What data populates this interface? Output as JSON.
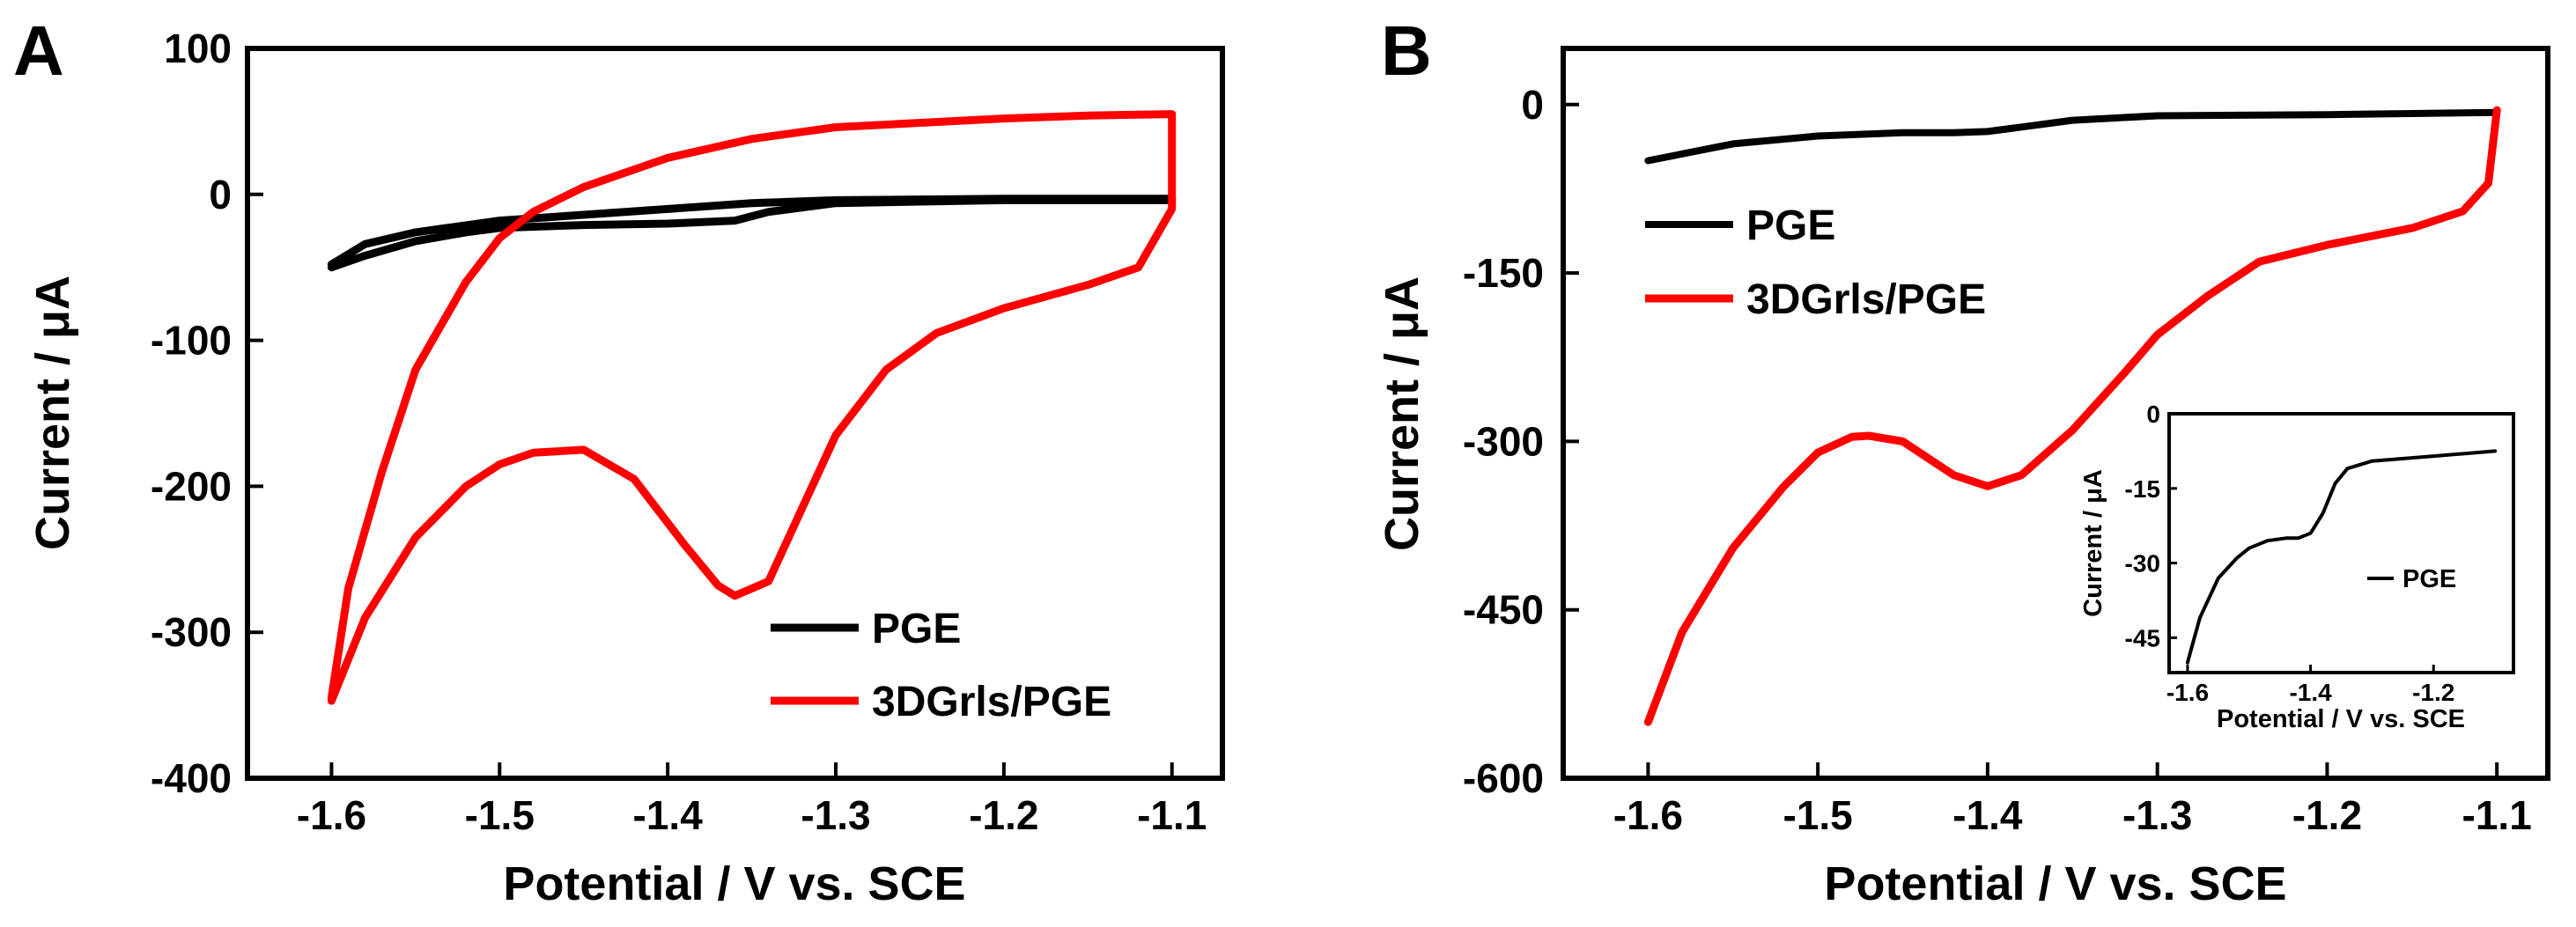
{
  "chart_data": [
    {
      "type": "line",
      "panel": "A",
      "xlabel": "Potential / V vs. SCE",
      "ylabel": "Current / μA",
      "xlim": [
        -1.65,
        -1.07
      ],
      "ylim": [
        -400,
        100
      ],
      "xticks": [
        -1.6,
        -1.5,
        -1.4,
        -1.3,
        -1.2,
        -1.1
      ],
      "xtick_labels": [
        "-1.6",
        "-1.5",
        "-1.4",
        "-1.3",
        "-1.2",
        "-1.1"
      ],
      "yticks": [
        100,
        0,
        -100,
        -200,
        -300,
        -400
      ],
      "ytick_labels": [
        "100",
        "0",
        "-100",
        "-200",
        "-300",
        "-400"
      ],
      "legend": [
        "PGE",
        "3DGrls/PGE"
      ],
      "legend_position": "bottom-right",
      "series": [
        {
          "name": "PGE",
          "color": "#000000",
          "x": [
            -1.6,
            -1.58,
            -1.55,
            -1.52,
            -1.5,
            -1.45,
            -1.4,
            -1.36,
            -1.34,
            -1.3,
            -1.2,
            -1.1,
            -1.1,
            -1.2,
            -1.3,
            -1.35,
            -1.4,
            -1.45,
            -1.5,
            -1.55,
            -1.58,
            -1.6
          ],
          "y": [
            -50,
            -42,
            -32,
            -26,
            -23,
            -21,
            -20,
            -18,
            -12,
            -6,
            -4,
            -4,
            -3,
            -3,
            -4,
            -6,
            -10,
            -14,
            -18,
            -26,
            -34,
            -48
          ]
        },
        {
          "name": "3DGrls/PGE",
          "color": "#ff0000",
          "x": [
            -1.6,
            -1.58,
            -1.55,
            -1.52,
            -1.5,
            -1.48,
            -1.45,
            -1.42,
            -1.39,
            -1.37,
            -1.36,
            -1.34,
            -1.32,
            -1.3,
            -1.27,
            -1.24,
            -1.2,
            -1.15,
            -1.12,
            -1.1,
            -1.1,
            -1.15,
            -1.2,
            -1.3,
            -1.35,
            -1.4,
            -1.45,
            -1.48,
            -1.5,
            -1.52,
            -1.55,
            -1.57,
            -1.59,
            -1.6
          ],
          "y": [
            -347,
            -290,
            -235,
            -200,
            -185,
            -177,
            -175,
            -195,
            -240,
            -268,
            -275,
            -265,
            -215,
            -165,
            -120,
            -95,
            -78,
            -62,
            -50,
            -10,
            55,
            54,
            52,
            46,
            38,
            25,
            5,
            -12,
            -30,
            -60,
            -120,
            -190,
            -270,
            -345
          ]
        }
      ]
    },
    {
      "type": "line",
      "panel": "B",
      "xlabel": "Potential / V vs. SCE",
      "ylabel": "Current / μA",
      "xlim": [
        -1.65,
        -1.07
      ],
      "ylim": [
        -600,
        50
      ],
      "xticks": [
        -1.6,
        -1.5,
        -1.4,
        -1.3,
        -1.2,
        -1.1
      ],
      "xtick_labels": [
        "-1.6",
        "-1.5",
        "-1.4",
        "-1.3",
        "-1.2",
        "-1.1"
      ],
      "yticks": [
        0,
        -150,
        -300,
        -450,
        -600
      ],
      "ytick_labels": [
        "0",
        "-150",
        "-300",
        "-450",
        "-600"
      ],
      "legend": [
        "PGE",
        "3DGrls/PGE"
      ],
      "legend_position": "upper-left",
      "series": [
        {
          "name": "PGE",
          "color": "#000000",
          "x": [
            -1.6,
            -1.55,
            -1.5,
            -1.45,
            -1.42,
            -1.4,
            -1.38,
            -1.35,
            -1.3,
            -1.2,
            -1.1
          ],
          "y": [
            -50,
            -35,
            -28,
            -25,
            -25,
            -24,
            -20,
            -14,
            -10,
            -9,
            -7
          ]
        },
        {
          "name": "3DGrls/PGE",
          "color": "#ff0000",
          "x": [
            -1.6,
            -1.58,
            -1.55,
            -1.52,
            -1.5,
            -1.48,
            -1.47,
            -1.45,
            -1.42,
            -1.4,
            -1.38,
            -1.35,
            -1.32,
            -1.3,
            -1.27,
            -1.24,
            -1.2,
            -1.15,
            -1.12,
            -1.105,
            -1.1
          ],
          "y": [
            -550,
            -470,
            -395,
            -340,
            -310,
            -296,
            -295,
            -300,
            -330,
            -340,
            -330,
            -290,
            -240,
            -205,
            -170,
            -140,
            -125,
            -110,
            -95,
            -70,
            -5
          ]
        }
      ],
      "inset": {
        "type": "line",
        "xlabel": "Potential / V vs. SCE",
        "ylabel": "Current / μA",
        "xlim": [
          -1.63,
          -1.07
        ],
        "ylim": [
          -52,
          0
        ],
        "xticks": [
          -1.6,
          -1.4,
          -1.2
        ],
        "xtick_labels": [
          "-1.6",
          "-1.4",
          "-1.2"
        ],
        "yticks": [
          0,
          -15,
          -30,
          -45
        ],
        "ytick_labels": [
          "0",
          "-15",
          "-30",
          "-45"
        ],
        "legend": [
          "PGE"
        ],
        "series": [
          {
            "name": "PGE",
            "color": "#000000",
            "x": [
              -1.6,
              -1.58,
              -1.55,
              -1.52,
              -1.5,
              -1.47,
              -1.44,
              -1.42,
              -1.4,
              -1.38,
              -1.36,
              -1.34,
              -1.3,
              -1.2,
              -1.1
            ],
            "y": [
              -50,
              -41,
              -33,
              -29,
              -27,
              -25.5,
              -25,
              -25,
              -24,
              -20,
              -14,
              -11,
              -9.5,
              -8.5,
              -7.5
            ]
          }
        ]
      }
    }
  ],
  "panels": {
    "a": {
      "letter": "A"
    },
    "b": {
      "letter": "B"
    }
  }
}
